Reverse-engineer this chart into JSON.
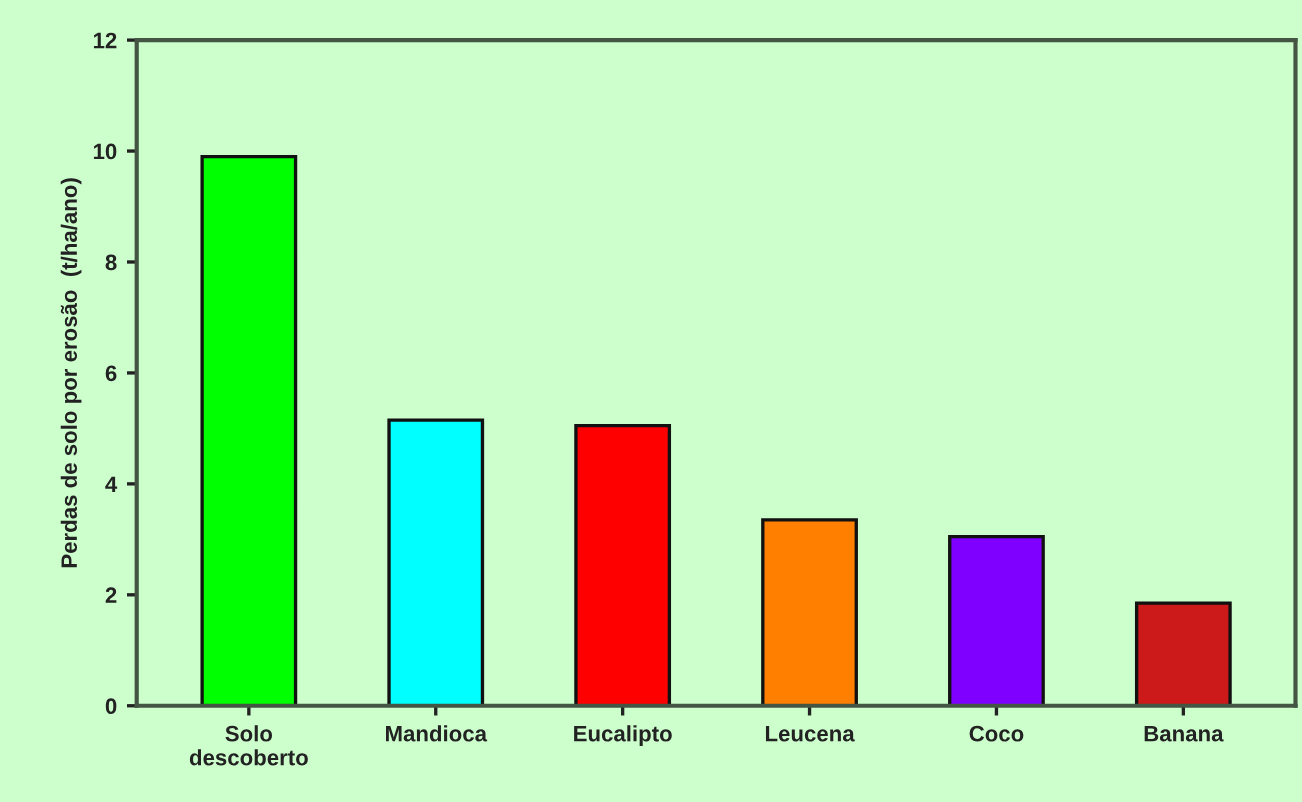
{
  "chart_data": {
    "type": "bar",
    "ylabel": "Perdas de solo por erosão  (t/ha/ano)",
    "categories": [
      "Solo\ndescoberto",
      "Mandioca",
      "Eucalipto",
      "Leucena",
      "Coco",
      "Banana"
    ],
    "values": [
      9.9,
      5.15,
      5.05,
      3.35,
      3.05,
      1.85
    ],
    "colors": [
      "#00ff00",
      "#00ffff",
      "#ff0000",
      "#ff8000",
      "#8000ff",
      "#cc1a1a"
    ],
    "ylim": [
      0,
      12
    ],
    "yticks": [
      0,
      2,
      4,
      6,
      8,
      10,
      12
    ],
    "grid": false,
    "legend": false
  }
}
